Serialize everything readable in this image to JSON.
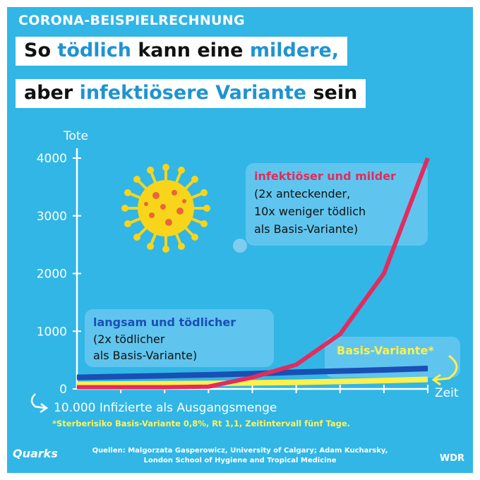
{
  "header": {
    "kicker": "CORONA-BEISPIELRECHNUNG",
    "line1_a": "So ",
    "line1_b": "tödlich",
    "line1_c": " kann eine ",
    "line1_d": "mildere,",
    "line2_a": "aber ",
    "line2_b": "infektiösere Variante",
    "line2_c": " sein"
  },
  "chart_data": {
    "type": "line",
    "ylabel": "Tote",
    "xlabel": "Zeit",
    "ylim": [
      0,
      4000
    ],
    "yticks": [
      "0",
      "1000",
      "2000",
      "3000",
      "4000"
    ],
    "x_origin_label": "10.000 Infizierte als Ausgangsmenge",
    "grid": false,
    "series": [
      {
        "name": "infektiöser und milder",
        "color": "#e32b5e",
        "values": [
          30,
          30,
          30,
          40,
          200,
          420,
          950,
          2000,
          4000
        ]
      },
      {
        "name": "langsam und tödlicher",
        "color": "#1a4fb4",
        "values": [
          200,
          215,
          230,
          245,
          265,
          290,
          310,
          330,
          355
        ]
      },
      {
        "name": "Basis-Variante*",
        "color": "#fff04a",
        "values": [
          80,
          85,
          90,
          95,
          105,
          115,
          130,
          145,
          165
        ]
      }
    ],
    "annotations": {
      "red_title": "infektiöser und milder",
      "red_l1": "(2x anteckender,",
      "red_l2": "10x weniger tödlich",
      "red_l3": "als Basis-Variante)",
      "blue_title": "langsam und tödlicher",
      "blue_l1": "(2x tödlicher",
      "blue_l2": "als Basis-Variante)",
      "yellow_title": "Basis-Variante*"
    }
  },
  "footnote": "*Sterberisiko Basis-Variante 0,8%, Rt 1,1, Zeitintervall fünf Tage.",
  "footer": {
    "brand_left": "Quarks",
    "sources_l1": "Quellen: Malgorzata Gasperowicz, University of Calgary; Adam Kucharsky,",
    "sources_l2": "London School of Hygiene and Tropical Medicine",
    "brand_right": "WDR"
  },
  "colors": {
    "background": "#31b6e6",
    "accent_blue": "#1f93d3",
    "red": "#e32b5e",
    "dark_blue": "#1a4fb4",
    "yellow": "#fff04a",
    "virus": "#f8d51a"
  },
  "icons": [
    "virus-icon",
    "curved-arrow-icon"
  ]
}
